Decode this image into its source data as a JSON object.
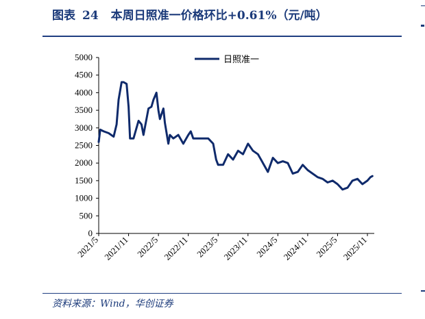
{
  "header": {
    "label": "图表",
    "number": "24",
    "title": "本周日照准一价格环比+0.61%（元/吨）"
  },
  "source": "资料来源：Wind，华创证券",
  "colors": {
    "series": "#0f2a6b",
    "accent": "#1e3d80"
  },
  "chart_data": {
    "type": "line",
    "title": "本周日照准一价格环比+0.61%（元/吨）",
    "xlabel": "",
    "ylabel": "",
    "ylim": [
      0,
      5000
    ],
    "yticks": [
      0,
      500,
      1000,
      1500,
      2000,
      2500,
      3000,
      3500,
      4000,
      4500,
      5000
    ],
    "xticks": [
      "2021/5",
      "2021/11",
      "2022/5",
      "2022/11",
      "2023/5",
      "2023/11",
      "2024/5",
      "2024/11",
      "2025/5",
      "2025/11"
    ],
    "legend": {
      "position": "top-center"
    },
    "grid": false,
    "series": [
      {
        "name": "日照准一",
        "points": [
          [
            "2021/5",
            2600
          ],
          [
            "2021/5.3",
            2950
          ],
          [
            "2021/6",
            2900
          ],
          [
            "2021/7",
            2850
          ],
          [
            "2021/8",
            2750
          ],
          [
            "2021/8.6",
            3100
          ],
          [
            "2021/9",
            3800
          ],
          [
            "2021/9.6",
            4300
          ],
          [
            "2021/10",
            4300
          ],
          [
            "2021/10.6",
            4250
          ],
          [
            "2021/11",
            3600
          ],
          [
            "2021/11.3",
            2700
          ],
          [
            "2021/12",
            2700
          ],
          [
            "2022/1",
            3200
          ],
          [
            "2022/1.6",
            3100
          ],
          [
            "2022/2",
            2800
          ],
          [
            "2022/3",
            3550
          ],
          [
            "2022/3.6",
            3600
          ],
          [
            "2022/4",
            3800
          ],
          [
            "2022/4.6",
            4000
          ],
          [
            "2022/5",
            3500
          ],
          [
            "2022/5.3",
            3250
          ],
          [
            "2022/6",
            3550
          ],
          [
            "2022/6.3",
            3150
          ],
          [
            "2022/7",
            2550
          ],
          [
            "2022/7.3",
            2800
          ],
          [
            "2022/8",
            2700
          ],
          [
            "2022/9",
            2800
          ],
          [
            "2022/10",
            2550
          ],
          [
            "2022/11",
            2800
          ],
          [
            "2022/11.5",
            2900
          ],
          [
            "2022/12",
            2700
          ],
          [
            "2023/1",
            2700
          ],
          [
            "2023/3",
            2700
          ],
          [
            "2023/4",
            2550
          ],
          [
            "2023/4.6",
            2100
          ],
          [
            "2023/5",
            1950
          ],
          [
            "2023/6",
            1950
          ],
          [
            "2023/7",
            2250
          ],
          [
            "2023/8",
            2100
          ],
          [
            "2023/9",
            2350
          ],
          [
            "2023/10",
            2250
          ],
          [
            "2023/11",
            2550
          ],
          [
            "2023/12",
            2350
          ],
          [
            "2024/1",
            2250
          ],
          [
            "2024/2",
            2000
          ],
          [
            "2024/3",
            1750
          ],
          [
            "2024/4",
            2150
          ],
          [
            "2024/5",
            2000
          ],
          [
            "2024/6",
            2050
          ],
          [
            "2024/7",
            2000
          ],
          [
            "2024/8",
            1700
          ],
          [
            "2024/9",
            1750
          ],
          [
            "2024/10",
            1950
          ],
          [
            "2024/11",
            1800
          ],
          [
            "2024/12",
            1700
          ],
          [
            "2025/1",
            1600
          ],
          [
            "2025/2",
            1550
          ],
          [
            "2025/3",
            1450
          ],
          [
            "2025/4",
            1500
          ],
          [
            "2025/5",
            1400
          ],
          [
            "2025/6",
            1250
          ],
          [
            "2025/7",
            1300
          ],
          [
            "2025/8",
            1500
          ],
          [
            "2025/9",
            1550
          ],
          [
            "2025/10",
            1400
          ],
          [
            "2025/11",
            1500
          ],
          [
            "2025/11.6",
            1600
          ],
          [
            "2025/12",
            1630
          ]
        ]
      }
    ]
  }
}
